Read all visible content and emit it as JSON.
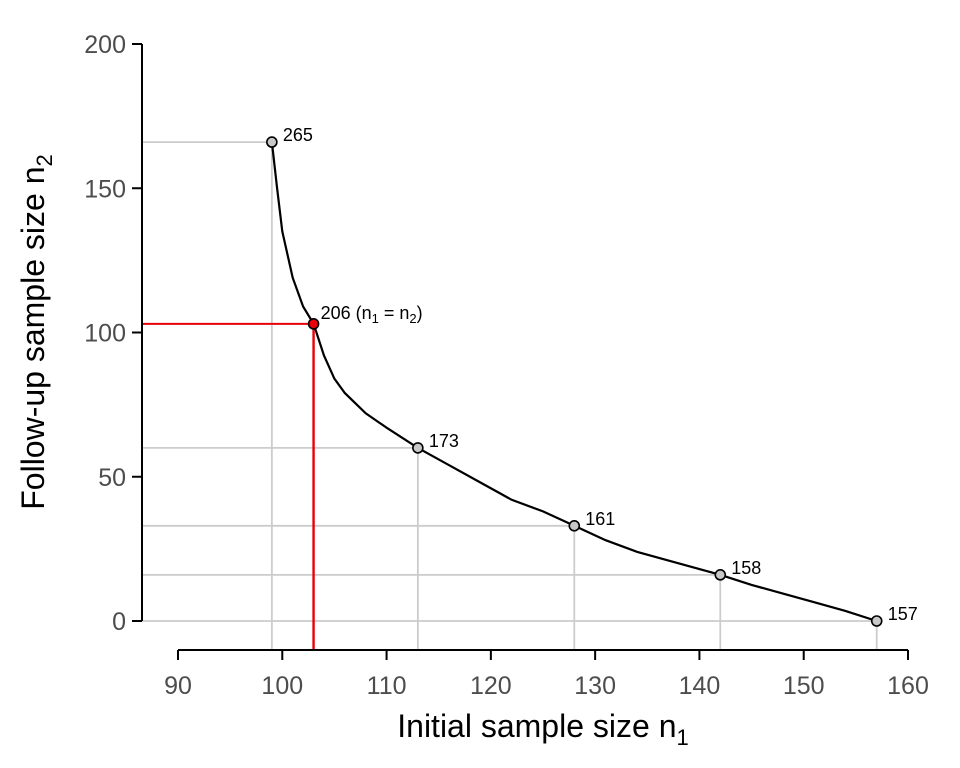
{
  "chart_data": {
    "type": "line",
    "title": "",
    "xlabel": {
      "main": "Initial sample size n",
      "sub": "1"
    },
    "ylabel": {
      "main": "Follow-up sample size n",
      "sub": "2"
    },
    "xlim": [
      90,
      160
    ],
    "ylim": [
      0,
      200
    ],
    "x_ticks": [
      90,
      100,
      110,
      120,
      130,
      140,
      150,
      160
    ],
    "y_ticks": [
      0,
      50,
      100,
      150,
      200
    ],
    "grid": false,
    "curve": {
      "x": [
        99,
        99.5,
        100,
        101,
        102,
        103,
        104,
        105,
        106,
        108,
        110,
        113,
        116,
        119,
        122,
        125,
        128,
        131,
        134,
        137,
        140,
        142,
        145,
        148,
        151,
        154,
        157
      ],
      "y": [
        166,
        150,
        135,
        119,
        109,
        103,
        92,
        84,
        79,
        72,
        67,
        60,
        54,
        48,
        42,
        38,
        33,
        28,
        24,
        21,
        18,
        16,
        12.5,
        9.5,
        6.5,
        3.5,
        0
      ]
    },
    "highlighted_points": [
      {
        "x": 99,
        "y": 166,
        "label": "265",
        "color": "#c8c8c8"
      },
      {
        "x": 113,
        "y": 60,
        "label": "173",
        "color": "#c8c8c8"
      },
      {
        "x": 128,
        "y": 33,
        "label": "161",
        "color": "#c8c8c8"
      },
      {
        "x": 142,
        "y": 16,
        "label": "158",
        "color": "#c8c8c8"
      },
      {
        "x": 157,
        "y": 0,
        "label": "157",
        "color": "#c8c8c8"
      }
    ],
    "equal_point": {
      "x": 103,
      "y": 103,
      "label": "206",
      "note_parts": [
        "(n",
        "1",
        " = n",
        "2",
        ")"
      ],
      "color": "#e8000b"
    },
    "colors": {
      "curve": "#000000",
      "guide": "#cccccc",
      "highlight": "#e8000b",
      "axis": "#000000",
      "tick_text": "#4d4d4d"
    }
  }
}
